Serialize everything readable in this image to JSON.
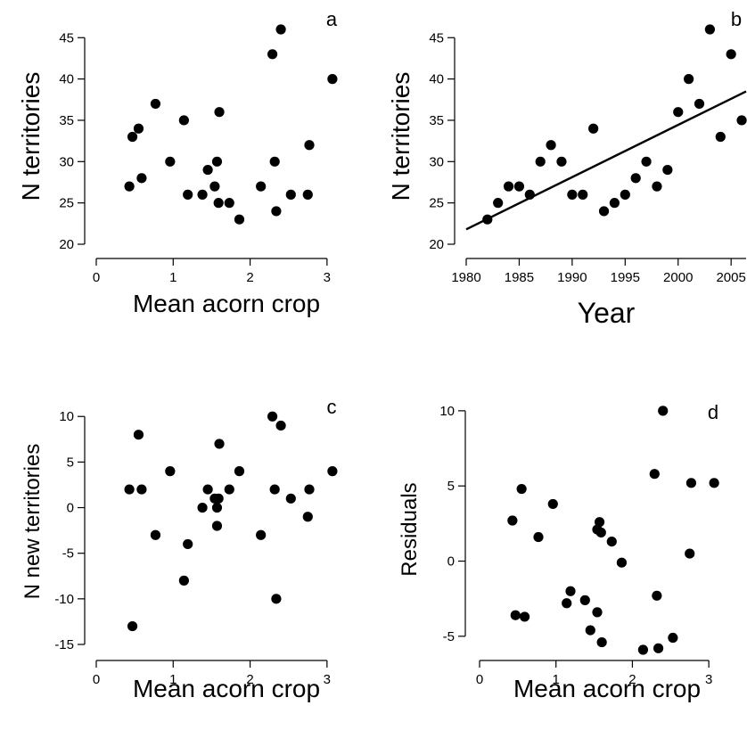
{
  "chart_data": [
    {
      "type": "scatter",
      "panel_label": "a",
      "xlabel": "Mean acorn crop",
      "ylabel": "N territories",
      "xlim": [
        0,
        3.5
      ],
      "ylim": [
        20,
        46
      ],
      "xticks": [
        0,
        1,
        2,
        3
      ],
      "yticks": [
        20,
        25,
        30,
        35,
        40,
        45
      ],
      "points": [
        [
          0.43,
          27
        ],
        [
          0.47,
          33
        ],
        [
          0.55,
          34
        ],
        [
          0.59,
          28
        ],
        [
          0.77,
          37
        ],
        [
          0.96,
          30
        ],
        [
          1.14,
          35
        ],
        [
          1.19,
          26
        ],
        [
          1.38,
          26
        ],
        [
          1.45,
          29
        ],
        [
          1.54,
          27
        ],
        [
          1.57,
          30
        ],
        [
          1.59,
          25
        ],
        [
          1.6,
          36
        ],
        [
          1.73,
          25
        ],
        [
          1.86,
          23
        ],
        [
          2.14,
          27
        ],
        [
          2.29,
          43
        ],
        [
          2.32,
          30
        ],
        [
          2.34,
          24
        ],
        [
          2.4,
          46
        ],
        [
          2.53,
          26
        ],
        [
          2.75,
          26
        ],
        [
          2.77,
          32
        ],
        [
          3.07,
          40
        ]
      ],
      "grid": false
    },
    {
      "type": "scatter",
      "panel_label": "b",
      "xlabel": "Year",
      "ylabel": "N territories",
      "xlim": [
        1980,
        2006.5
      ],
      "ylim": [
        20,
        46
      ],
      "xticks": [
        1980,
        1985,
        1990,
        1995,
        2000,
        2005
      ],
      "yticks": [
        20,
        25,
        30,
        35,
        40,
        45
      ],
      "points": [
        [
          1982,
          23
        ],
        [
          1983,
          25
        ],
        [
          1984,
          27
        ],
        [
          1985,
          27
        ],
        [
          1986,
          26
        ],
        [
          1987,
          30
        ],
        [
          1988,
          32
        ],
        [
          1989,
          30
        ],
        [
          1990,
          26
        ],
        [
          1991,
          26
        ],
        [
          1992,
          34
        ],
        [
          1993,
          24
        ],
        [
          1994,
          25
        ],
        [
          1995,
          26
        ],
        [
          1996,
          28
        ],
        [
          1997,
          30
        ],
        [
          1998,
          27
        ],
        [
          1999,
          29
        ],
        [
          2000,
          36
        ],
        [
          2001,
          40
        ],
        [
          2002,
          37
        ],
        [
          2003,
          46
        ],
        [
          2004,
          33
        ],
        [
          2005,
          43
        ],
        [
          2006,
          35
        ]
      ],
      "regression": {
        "x": [
          1980,
          2006.5
        ],
        "y": [
          21.8,
          38.5
        ]
      },
      "grid": false
    },
    {
      "type": "scatter",
      "panel_label": "c",
      "xlabel": "Mean acorn crop",
      "ylabel": "N new territories",
      "xlim": [
        0,
        3.5
      ],
      "ylim": [
        -15,
        11
      ],
      "xticks": [
        0,
        1,
        2,
        3
      ],
      "yticks": [
        -15,
        -10,
        -5,
        0,
        5,
        10
      ],
      "points": [
        [
          0.43,
          2
        ],
        [
          0.47,
          -13
        ],
        [
          0.55,
          8
        ],
        [
          0.59,
          2
        ],
        [
          0.77,
          -3
        ],
        [
          0.96,
          4
        ],
        [
          1.14,
          -8
        ],
        [
          1.19,
          -4
        ],
        [
          1.38,
          0
        ],
        [
          1.45,
          2
        ],
        [
          1.54,
          1
        ],
        [
          1.57,
          0
        ],
        [
          1.59,
          1
        ],
        [
          1.57,
          -2
        ],
        [
          1.6,
          7
        ],
        [
          1.73,
          2
        ],
        [
          1.86,
          4
        ],
        [
          2.14,
          -3
        ],
        [
          2.29,
          10
        ],
        [
          2.32,
          2
        ],
        [
          2.34,
          -10
        ],
        [
          2.4,
          9
        ],
        [
          2.53,
          1
        ],
        [
          2.75,
          -1
        ],
        [
          2.77,
          2
        ],
        [
          3.07,
          4
        ]
      ],
      "grid": false
    },
    {
      "type": "scatter",
      "panel_label": "d",
      "xlabel": "Mean acorn crop",
      "ylabel": "Residuals",
      "xlim": [
        0,
        3.5
      ],
      "ylim": [
        -7.5,
        11
      ],
      "xticks": [
        0,
        1,
        2,
        3
      ],
      "yticks": [
        -5,
        0,
        5,
        10
      ],
      "points": [
        [
          0.43,
          2.7
        ],
        [
          0.47,
          -3.6
        ],
        [
          0.55,
          4.8
        ],
        [
          0.59,
          -3.7
        ],
        [
          0.77,
          1.6
        ],
        [
          0.96,
          3.8
        ],
        [
          1.14,
          -2.8
        ],
        [
          1.19,
          -2.0
        ],
        [
          1.38,
          -2.6
        ],
        [
          1.45,
          -4.6
        ],
        [
          1.54,
          -3.4
        ],
        [
          1.54,
          2.1
        ],
        [
          1.57,
          2.6
        ],
        [
          1.59,
          1.9
        ],
        [
          1.6,
          -5.4
        ],
        [
          1.73,
          1.3
        ],
        [
          1.86,
          -0.1
        ],
        [
          2.14,
          -5.9
        ],
        [
          2.29,
          5.8
        ],
        [
          2.32,
          -2.3
        ],
        [
          2.34,
          -5.8
        ],
        [
          2.4,
          10.0
        ],
        [
          2.53,
          -5.1
        ],
        [
          2.75,
          0.5
        ],
        [
          2.77,
          5.2
        ],
        [
          3.07,
          5.2
        ]
      ],
      "grid": false
    }
  ]
}
